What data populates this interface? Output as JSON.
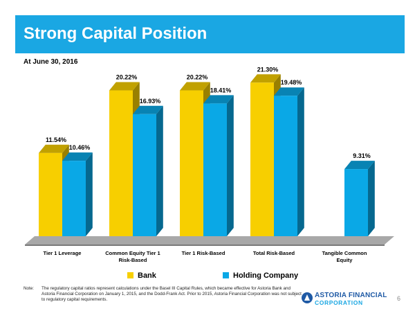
{
  "slide": {
    "title": "Strong Capital Position",
    "subtitle": "At June 30, 2016",
    "page_number": "6",
    "accent_color": "#1aa7e3"
  },
  "note": {
    "label": "Note:",
    "text": "The regulatory capital ratios represent calculations under the Basel III Capital Rules, which became effective for Astoria Bank and Astoria Financial Corporation on January 1, 2015, and the Dodd-Frank Act. Prior to 2015, Astoria Financial Corporation was not subject to regulatory capital requirements."
  },
  "logo": {
    "line1": "ASTORIA FINANCIAL",
    "line2": "CORPORATION"
  },
  "chart_data": {
    "type": "bar",
    "categories": [
      [
        "Tier 1 Leverage"
      ],
      [
        "Common Equity Tier 1",
        "Risk-Based"
      ],
      [
        "Tier 1 Risk-Based"
      ],
      [
        "Total Risk-Based"
      ],
      [
        "Tangible Common",
        "Equity"
      ]
    ],
    "series": [
      {
        "name": "Bank",
        "color": "#f7cf00",
        "values": [
          11.54,
          20.22,
          20.22,
          21.3,
          null
        ],
        "labels": [
          "11.54%",
          "20.22%",
          "20.22%",
          "21.30%",
          ""
        ]
      },
      {
        "name": "Holding Company",
        "color": "#0aa8e6",
        "values": [
          10.46,
          16.93,
          18.41,
          19.48,
          9.31
        ],
        "labels": [
          "10.46%",
          "16.93%",
          "18.41%",
          "19.48%",
          "9.31%"
        ]
      }
    ],
    "ylim": [
      0,
      22
    ],
    "grid": false,
    "legend_position": "bottom",
    "three_d": true
  }
}
